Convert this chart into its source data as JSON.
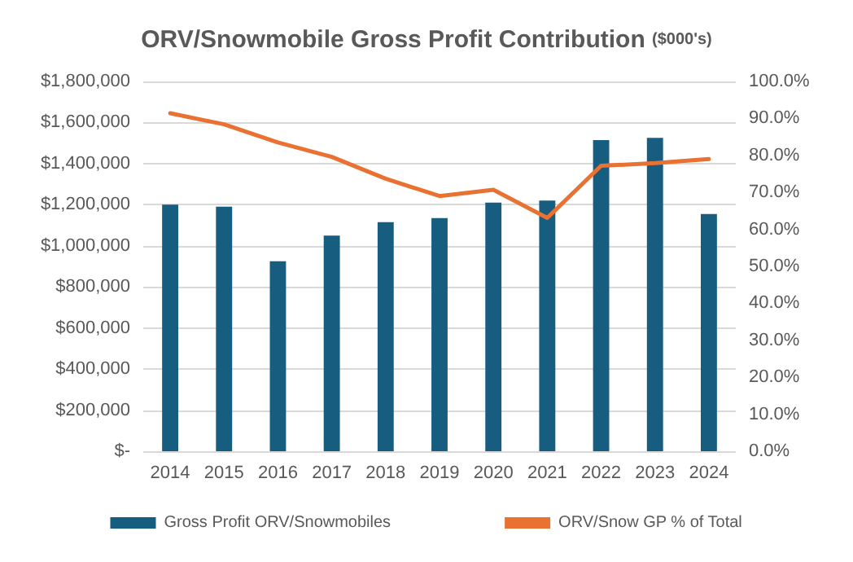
{
  "chart_data": {
    "type": "bar",
    "title": "ORV/Snowmobile Gross Profit Contribution",
    "subtitle": "($000's)",
    "categories": [
      "2014",
      "2015",
      "2016",
      "2017",
      "2018",
      "2019",
      "2020",
      "2021",
      "2022",
      "2023",
      "2024"
    ],
    "series": [
      {
        "name": "Gross Profit ORV/Snowmobiles",
        "color": "#175d80",
        "values": [
          1200000,
          1190000,
          925000,
          1050000,
          1115000,
          1135000,
          1210000,
          1220000,
          1515000,
          1525000,
          1155000
        ]
      },
      {
        "name": "ORV/Snow GP % of Total",
        "type": "line",
        "axis": "y2",
        "color": "#e97132",
        "values": [
          91.4,
          88.4,
          83.5,
          79.6,
          73.7,
          69.0,
          70.7,
          63.1,
          77.2,
          77.9,
          79.0
        ]
      }
    ],
    "ylim": [
      0,
      1800000
    ],
    "yticks": [
      {
        "value": 0,
        "label": "$-"
      },
      {
        "value": 200000,
        "label": "$200,000"
      },
      {
        "value": 400000,
        "label": "$400,000"
      },
      {
        "value": 600000,
        "label": "$600,000"
      },
      {
        "value": 800000,
        "label": "$800,000"
      },
      {
        "value": 1000000,
        "label": "$1,000,000"
      },
      {
        "value": 1200000,
        "label": "$1,200,000"
      },
      {
        "value": 1400000,
        "label": "$1,400,000"
      },
      {
        "value": 1600000,
        "label": "$1,600,000"
      },
      {
        "value": 1800000,
        "label": "$1,800,000"
      }
    ],
    "y2lim": [
      0,
      100
    ],
    "y2ticks": [
      {
        "value": 0,
        "label": "0.0%"
      },
      {
        "value": 10,
        "label": "10.0%"
      },
      {
        "value": 20,
        "label": "20.0%"
      },
      {
        "value": 30,
        "label": "30.0%"
      },
      {
        "value": 40,
        "label": "40.0%"
      },
      {
        "value": 50,
        "label": "50.0%"
      },
      {
        "value": 60,
        "label": "60.0%"
      },
      {
        "value": 70,
        "label": "70.0%"
      },
      {
        "value": 80,
        "label": "80.0%"
      },
      {
        "value": 90,
        "label": "90.0%"
      },
      {
        "value": 100,
        "label": "100.0%"
      }
    ],
    "grid": "y",
    "legend": "bottom",
    "marker": "none",
    "line_style": "solid"
  }
}
